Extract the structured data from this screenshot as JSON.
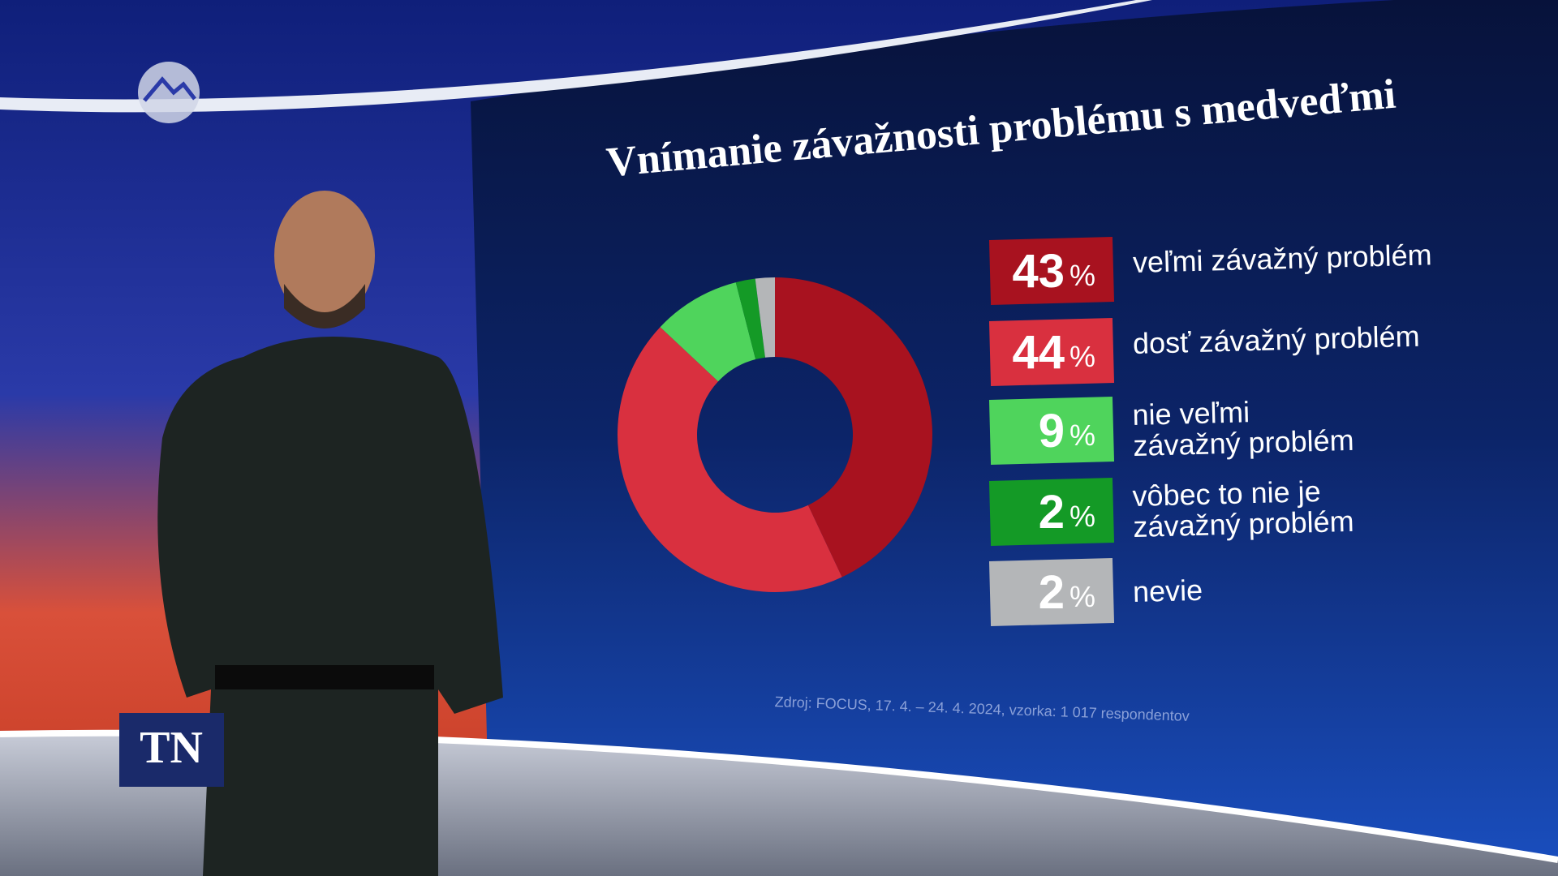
{
  "chart_data": {
    "type": "donut",
    "title": "Vnímanie závažnosti problému s medveďmi",
    "categories": [
      "veľmi závažný problém",
      "dosť závažný problém",
      "nie veľmi\nzávažný problém",
      "vôbec to nie je\nzávažný problém",
      "nevie"
    ],
    "values": [
      43,
      44,
      9,
      2,
      2
    ],
    "unit": "%",
    "colors": [
      "#a8121f",
      "#d9303f",
      "#4fd45c",
      "#149a26",
      "#b4b6b8"
    ],
    "source": "Zdroj: FOCUS, 17. 4. – 24. 4. 2024, vzorka: 1 017 respondentov"
  },
  "channel_logo": "TN"
}
